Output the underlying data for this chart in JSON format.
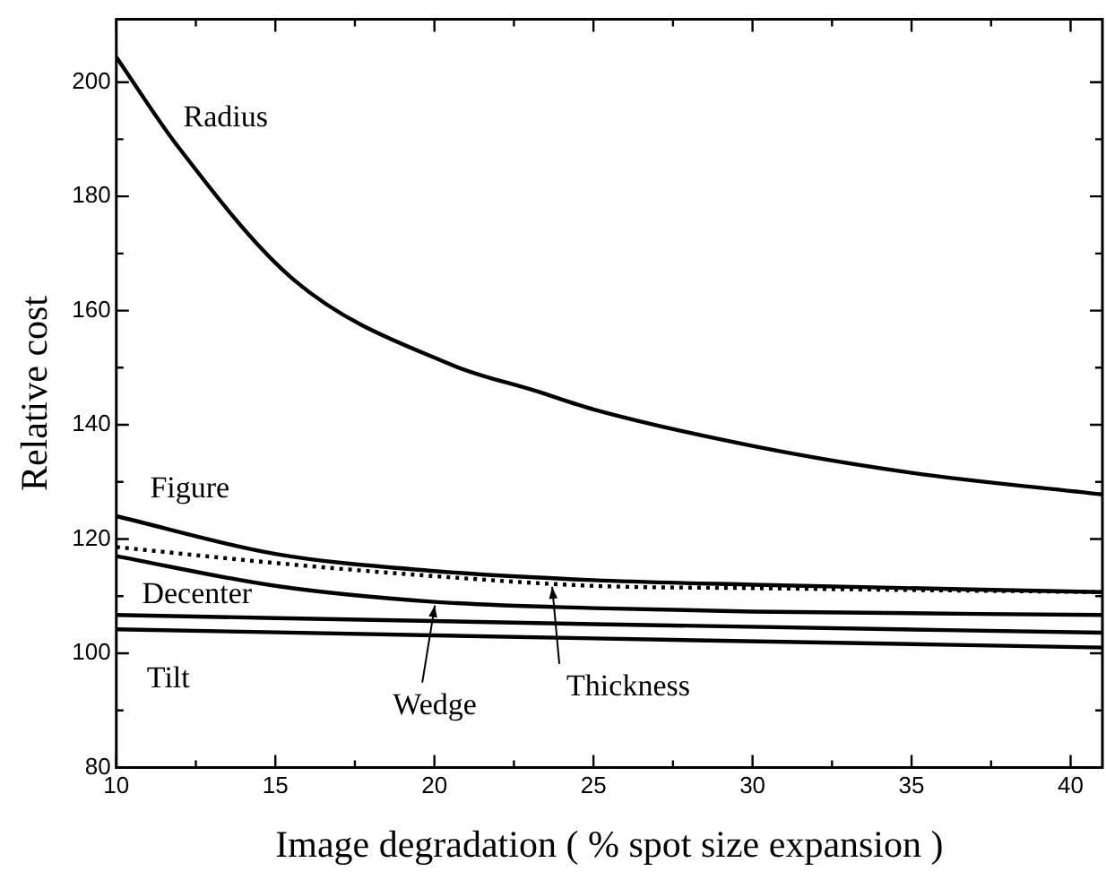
{
  "chart_data": {
    "type": "line",
    "xlabel": "Image degradation ( % spot size expansion )",
    "ylabel": "Relative cost",
    "xlim": [
      10,
      41
    ],
    "ylim": [
      80,
      211
    ],
    "xticks": [
      10,
      {
        "value": 12.5,
        "label": null
      },
      15,
      {
        "value": 17.5,
        "label": null
      },
      20,
      {
        "value": 22.5,
        "label": null
      },
      25,
      {
        "value": 27.5,
        "label": null
      },
      30,
      {
        "value": 32.5,
        "label": null
      },
      35,
      {
        "value": 37.5,
        "label": null
      },
      40
    ],
    "yticks": [
      80,
      {
        "value": 90,
        "label": null
      },
      100,
      {
        "value": 110,
        "label": null
      },
      120,
      {
        "value": 130,
        "label": null
      },
      140,
      {
        "value": 150,
        "label": null
      },
      160,
      {
        "value": 170,
        "label": null
      },
      180,
      {
        "value": 190,
        "label": null
      },
      200
    ],
    "grid": false,
    "legend": false,
    "marker": "none",
    "series": [
      {
        "name": "Radius",
        "color": "#000000",
        "x": [
          10,
          11.9,
          15.6,
          20.5,
          23.2,
          25,
          30,
          35,
          41
        ],
        "values": [
          204.4,
          189,
          165.3,
          150.6,
          145.9,
          142.7,
          136.3,
          131.6,
          127.8
        ]
      },
      {
        "name": "Figure",
        "color": "#000000",
        "x": [
          10,
          15,
          20,
          25,
          30,
          41
        ],
        "values": [
          124,
          117.4,
          114.4,
          112.8,
          112,
          110.7
        ]
      },
      {
        "name": "Thickness",
        "color": "#000000",
        "line_style": "dotted",
        "x": [
          10,
          15,
          20,
          25,
          30,
          41
        ],
        "values": [
          118.6,
          115.8,
          113.5,
          111.8,
          111.4,
          110.7
        ]
      },
      {
        "name": "Wedge",
        "color": "#000000",
        "x": [
          10,
          15,
          20,
          25,
          30,
          41
        ],
        "values": [
          117,
          111.8,
          109,
          107.9,
          107.3,
          106.7
        ]
      },
      {
        "name": "Decenter",
        "color": "#000000",
        "x": [
          10,
          25,
          41
        ],
        "values": [
          106.7,
          105.1,
          103.6
        ]
      },
      {
        "name": "Tilt",
        "color": "#000000",
        "x": [
          10,
          25,
          41
        ],
        "values": [
          104.2,
          102.6,
          101
        ]
      }
    ]
  }
}
